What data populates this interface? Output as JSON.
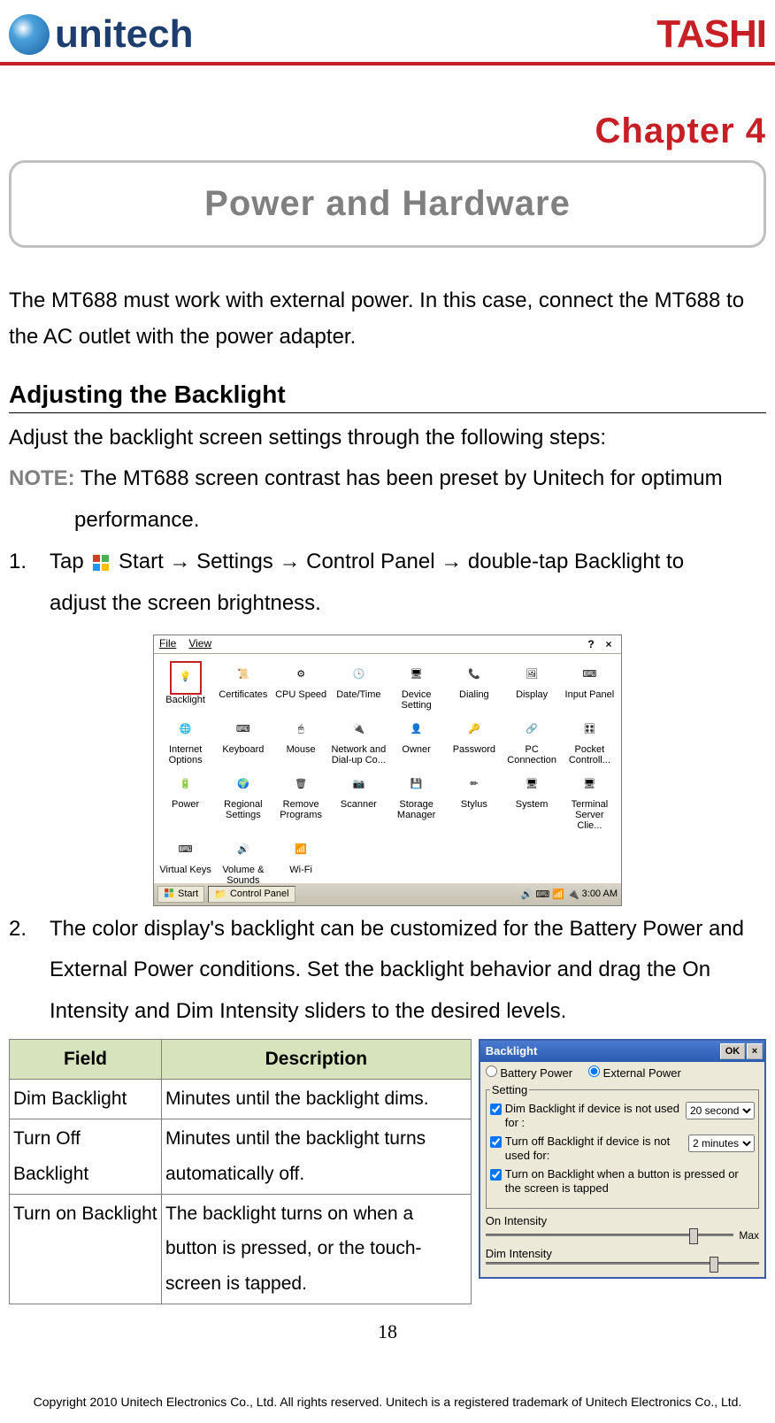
{
  "header": {
    "logo_unitech_text": "unitech",
    "logo_tashi_text": "TASHI",
    "rule_color": "#c62026"
  },
  "chapter": "Chapter 4",
  "title_box": {
    "text": "Power and Hardware",
    "text_color": "#808080",
    "border_color": "#c0c0c0"
  },
  "intro": "The MT688 must work with external power. In this case, connect the MT688 to the AC outlet with the power adapter.",
  "section1": {
    "heading": "Adjusting the Backlight",
    "line1": "Adjust the backlight screen settings through the following steps:",
    "note_label": "NOTE:",
    "note_text": " The MT688 screen contrast has been preset by Unitech for optimum",
    "note_cont": "performance.",
    "step1_num": "1.",
    "step1_a": "Tap ",
    "step1_b": " Start → Settings → Control Panel → double-tap Backlight to",
    "step1_cont": "adjust the screen brightness.",
    "step2_num": "2.",
    "step2_a": "The color display's backlight can be customized for the Battery Power and",
    "step2_b": "External Power conditions. Set the backlight behavior and drag the On",
    "step2_c": "Intensity and Dim Intensity sliders to the desired levels."
  },
  "screenshot1": {
    "menu_file": "File",
    "menu_view": "View",
    "help_glyph": "?",
    "close_glyph": "×",
    "selected_index": 0,
    "items": [
      {
        "label": "Backlight"
      },
      {
        "label": "Certificates"
      },
      {
        "label": "CPU Speed"
      },
      {
        "label": "Date/Time"
      },
      {
        "label": "Device Setting"
      },
      {
        "label": "Dialing"
      },
      {
        "label": "Display"
      },
      {
        "label": "Input Panel"
      },
      {
        "label": "Internet Options"
      },
      {
        "label": "Keyboard"
      },
      {
        "label": "Mouse"
      },
      {
        "label": "Network and Dial-up Co..."
      },
      {
        "label": "Owner"
      },
      {
        "label": "Password"
      },
      {
        "label": "PC Connection"
      },
      {
        "label": "Pocket Controll..."
      },
      {
        "label": "Power"
      },
      {
        "label": "Regional Settings"
      },
      {
        "label": "Remove Programs"
      },
      {
        "label": "Scanner"
      },
      {
        "label": "Storage Manager"
      },
      {
        "label": "Stylus"
      },
      {
        "label": "System"
      },
      {
        "label": "Terminal Server Clie..."
      },
      {
        "label": "Virtual Keys"
      },
      {
        "label": "Volume & Sounds"
      },
      {
        "label": "Wi-Fi"
      }
    ],
    "start_label": "Start",
    "task_label": "Control Panel",
    "clock": "3:00 AM"
  },
  "field_table": {
    "header_bg": "#d6e3bc",
    "columns": [
      "Field",
      "Description"
    ],
    "rows": [
      [
        "Dim Backlight",
        "Minutes until the backlight dims."
      ],
      [
        "Turn Off Backlight",
        "Minutes until the backlight turns automatically off."
      ],
      [
        "Turn on Backlight",
        "The backlight turns on when a button is pressed, or the touch-screen is tapped."
      ]
    ]
  },
  "screenshot2": {
    "title": "Backlight",
    "ok_label": "OK",
    "close_glyph": "×",
    "radio_battery": "Battery Power",
    "radio_external": "External Power",
    "radio_selected": "external",
    "fieldset_legend": "Setting",
    "cb1_checked": true,
    "cb1_label": "Dim Backlight if device is not used for :",
    "cb1_value": "20 second",
    "cb2_checked": true,
    "cb2_label": "Turn off Backlight if device is not used for:",
    "cb2_value": "2 minutes",
    "cb3_checked": true,
    "cb3_label": "Turn on Backlight when a button is pressed or the screen is tapped",
    "slider1_label": "On Intensity",
    "slider1_pos": 0.82,
    "max_label": "Max",
    "slider2_label": "Dim Intensity",
    "slider2_pos": 0.82
  },
  "page_number": "18",
  "footer": "Copyright 2010 Unitech Electronics Co., Ltd. All rights reserved. Unitech is a registered trademark of Unitech Electronics Co., Ltd."
}
